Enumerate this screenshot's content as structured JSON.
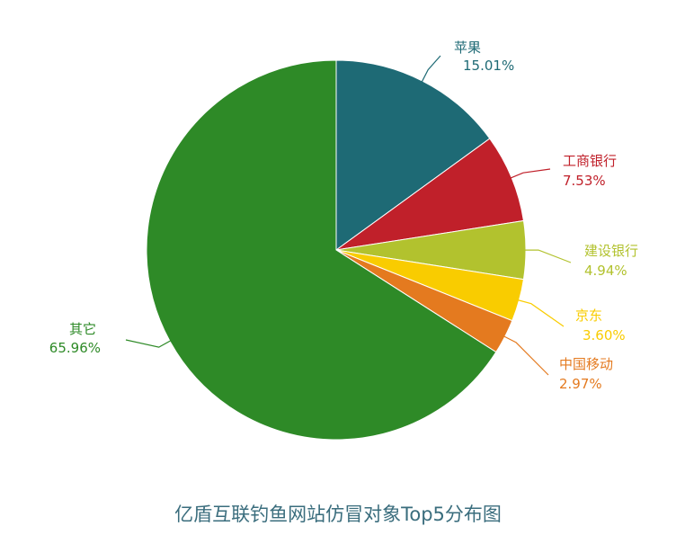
{
  "chart_data": {
    "type": "pie",
    "title": "亿盾互联钓鱼网站仿冒对象Top5分布图",
    "slices": [
      {
        "label": "苹果",
        "percent_label": "15.01%",
        "value": 15.01,
        "color": "#1e6a75"
      },
      {
        "label": "工商银行",
        "percent_label": "7.53%",
        "value": 7.53,
        "color": "#c0202a"
      },
      {
        "label": "建设银行",
        "percent_label": "4.94%",
        "value": 4.94,
        "color": "#b2c22e"
      },
      {
        "label": "京东",
        "percent_label": "3.60%",
        "value": 3.6,
        "color": "#f9cc00"
      },
      {
        "label": "中国移动",
        "percent_label": "2.97%",
        "value": 2.97,
        "color": "#e47a1f"
      },
      {
        "label": "其它",
        "percent_label": "65.96%",
        "value": 65.96,
        "color": "#2e8a27"
      }
    ]
  }
}
